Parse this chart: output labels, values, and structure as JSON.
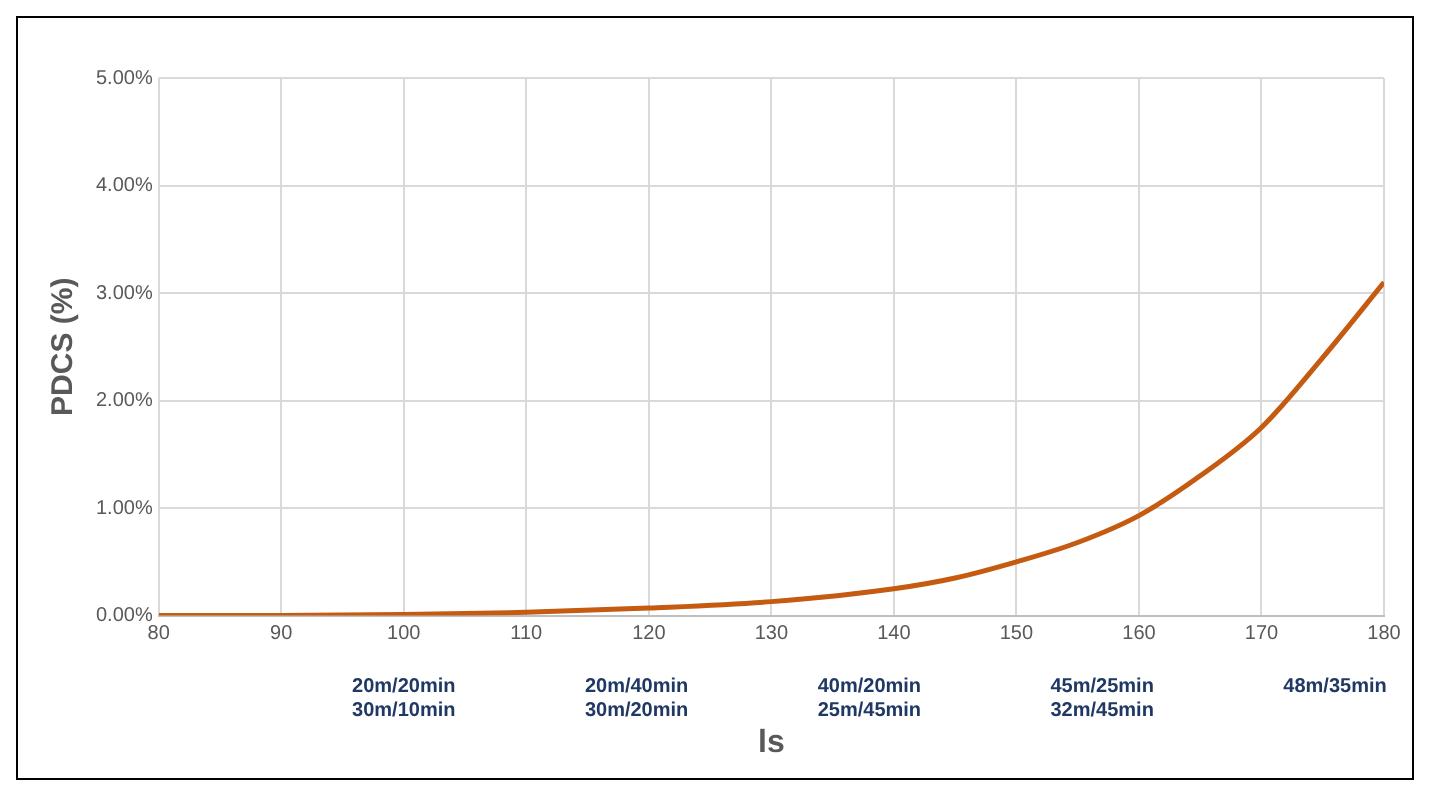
{
  "chart_data": {
    "type": "line",
    "xlabel": "ls",
    "ylabel": "PDCS (%)",
    "x": [
      80,
      90,
      100,
      110,
      120,
      130,
      140,
      145,
      150,
      155,
      160,
      165,
      170,
      175,
      180
    ],
    "series": [
      {
        "color": "#c55a11",
        "values": [
          0,
          0,
          0.01,
          0.03,
          0.07,
          0.13,
          0.25,
          0.35,
          0.5,
          0.68,
          0.93,
          1.3,
          1.75,
          2.4,
          3.1
        ]
      }
    ],
    "xlim": [
      80,
      180
    ],
    "xticks": [
      80,
      90,
      100,
      110,
      120,
      130,
      140,
      150,
      160,
      170,
      180
    ],
    "ylim": [
      0,
      5
    ],
    "yticks": [
      {
        "value": 0,
        "label": "0.00%"
      },
      {
        "value": 1,
        "label": "1.00%"
      },
      {
        "value": 2,
        "label": "2.00%"
      },
      {
        "value": 3,
        "label": "3.00%"
      },
      {
        "value": 4,
        "label": "4.00%"
      },
      {
        "value": 5,
        "label": "5.00%"
      }
    ],
    "annotations": [
      "20m/20min\n30m/10min",
      "20m/40min\n30m/20min",
      "40m/20min\n25m/45min",
      "45m/25min\n32m/45min",
      "48m/35min"
    ],
    "grid": true,
    "legend": false,
    "marker": "none",
    "line_style": "solid"
  }
}
